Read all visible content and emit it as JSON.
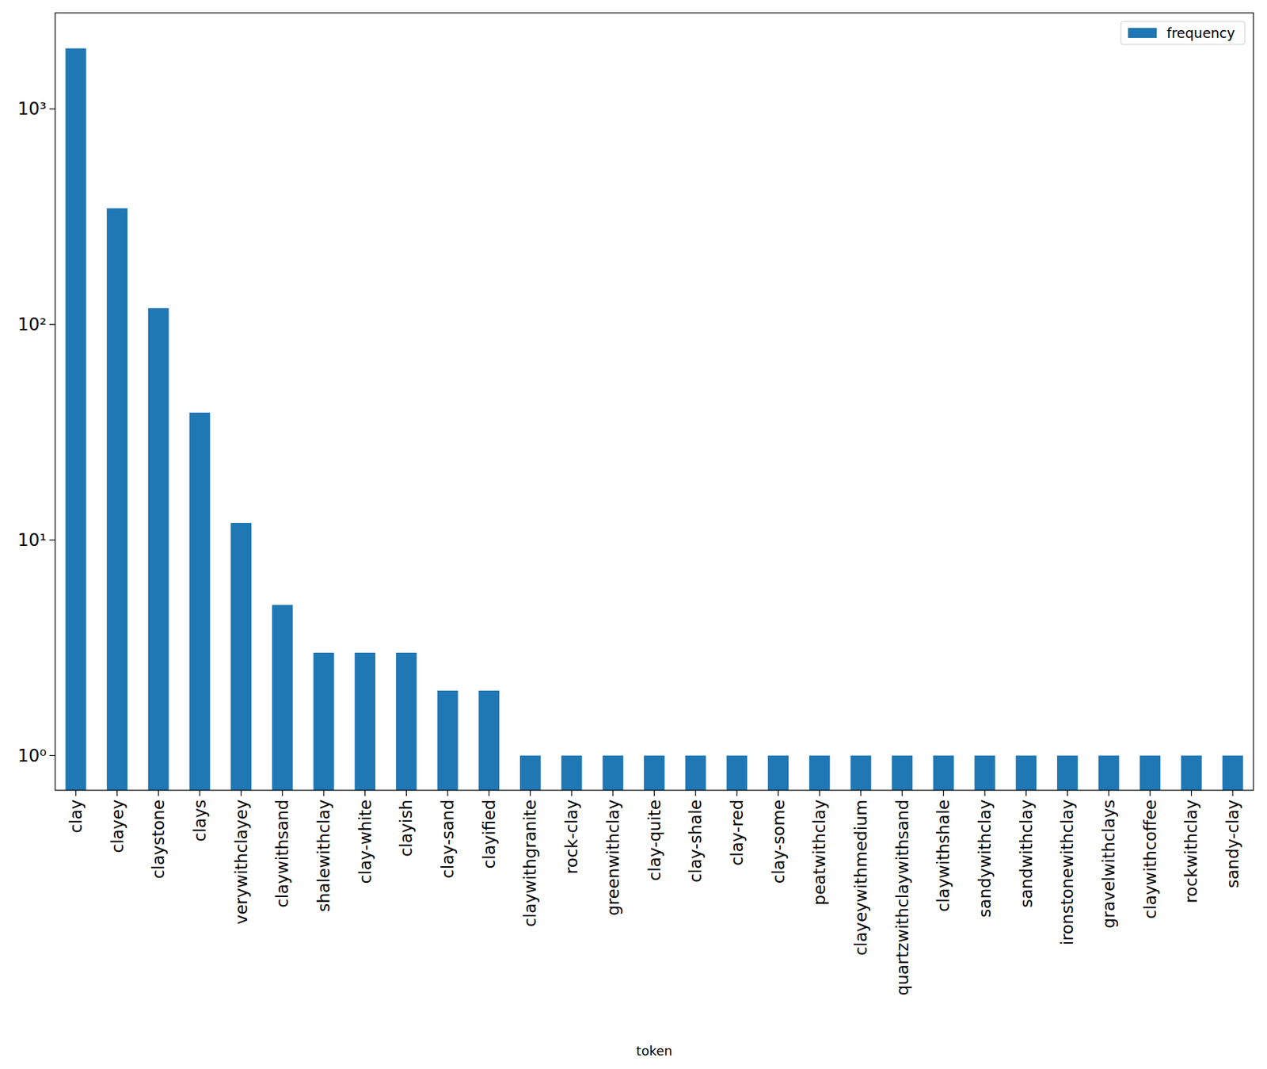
{
  "chart_data": {
    "type": "bar",
    "x_label": "token",
    "categories": [
      "clay",
      "clayey",
      "claystone",
      "clays",
      "verywithclayey",
      "claywithsand",
      "shalewithclay",
      "clay-white",
      "clayish",
      "clay-sand",
      "clayified",
      "claywithgranite",
      "rock-clay",
      "greenwithclay",
      "clay-quite",
      "clay-shale",
      "clay-red",
      "clay-some",
      "peatwithclay",
      "clayeywithmedium",
      "quartzwithclaywithsand",
      "claywithshale",
      "sandywithclay",
      "sandwithclay",
      "ironstonewithclay",
      "gravelwithclays",
      "claywithcoffee",
      "rockwithclay",
      "sandy-clay"
    ],
    "series": [
      {
        "name": "frequency",
        "color": "#1f77b4",
        "values": [
          1910,
          346,
          119,
          39,
          12,
          5,
          3,
          3,
          3,
          2,
          2,
          1,
          1,
          1,
          1,
          1,
          1,
          1,
          1,
          1,
          1,
          1,
          1,
          1,
          1,
          1,
          1,
          1,
          1
        ]
      }
    ],
    "ylim": [
      0.69,
      2790
    ],
    "yticks": [
      {
        "value": 1,
        "label": "10⁰"
      },
      {
        "value": 10,
        "label": "10¹"
      },
      {
        "value": 100,
        "label": "10²"
      },
      {
        "value": 1000,
        "label": "10³"
      }
    ],
    "log": "y",
    "grid": false,
    "legend": "upper right"
  }
}
